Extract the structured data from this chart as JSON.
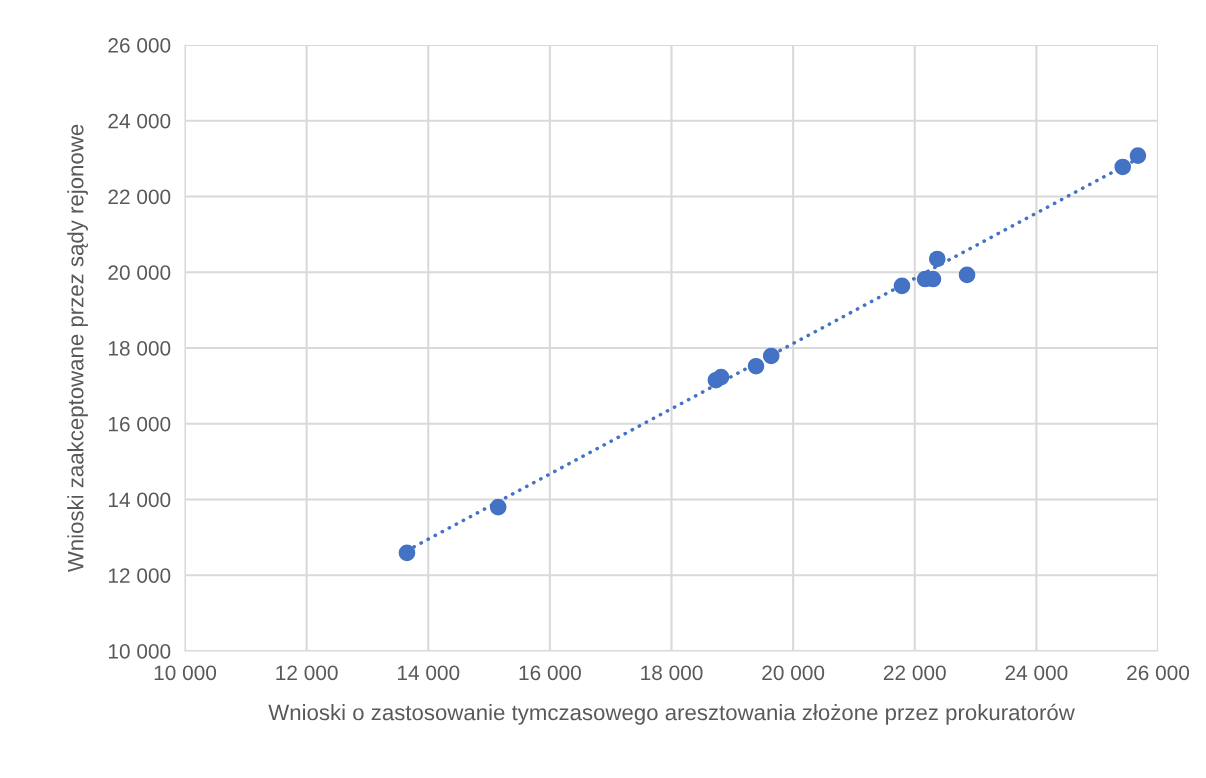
{
  "chart_data": {
    "type": "scatter",
    "xlabel": "Wnioski o zastosowanie tymczasowego aresztowania złożone przez prokuratorów",
    "ylabel": "Wnioski zaakceptowane przez sądy rejonowe",
    "x": [
      13650,
      15150,
      18730,
      18815,
      19390,
      19640,
      21790,
      22170,
      22300,
      22370,
      22860,
      25420,
      25670
    ],
    "series": [
      {
        "color": "#4472c4",
        "marker": "circle",
        "values": [
          12590,
          13800,
          17150,
          17230,
          17520,
          17790,
          19640,
          19820,
          19820,
          20350,
          19930,
          22780,
          23080
        ]
      },
      {
        "type": "line",
        "color": "#4472c4",
        "line_style": "dotted",
        "x": [
          13650,
          25670
        ],
        "values": [
          12650,
          23000
        ]
      }
    ],
    "xlim": [
      10000,
      26000
    ],
    "ylim": [
      10000,
      26000
    ],
    "xticks": [
      {
        "value": 10000,
        "label": "10 000"
      },
      {
        "value": 12000,
        "label": "12 000"
      },
      {
        "value": 14000,
        "label": "14 000"
      },
      {
        "value": 16000,
        "label": "16 000"
      },
      {
        "value": 18000,
        "label": "18 000"
      },
      {
        "value": 20000,
        "label": "20 000"
      },
      {
        "value": 22000,
        "label": "22 000"
      },
      {
        "value": 24000,
        "label": "24 000"
      },
      {
        "value": 26000,
        "label": "26 000"
      }
    ],
    "yticks": [
      {
        "value": 10000,
        "label": "10 000"
      },
      {
        "value": 12000,
        "label": "12 000"
      },
      {
        "value": 14000,
        "label": "14 000"
      },
      {
        "value": 16000,
        "label": "16 000"
      },
      {
        "value": 18000,
        "label": "18 000"
      },
      {
        "value": 20000,
        "label": "20 000"
      },
      {
        "value": 22000,
        "label": "22 000"
      },
      {
        "value": 24000,
        "label": "24 000"
      },
      {
        "value": 26000,
        "label": "26 000"
      }
    ],
    "grid": true,
    "legend": false
  }
}
